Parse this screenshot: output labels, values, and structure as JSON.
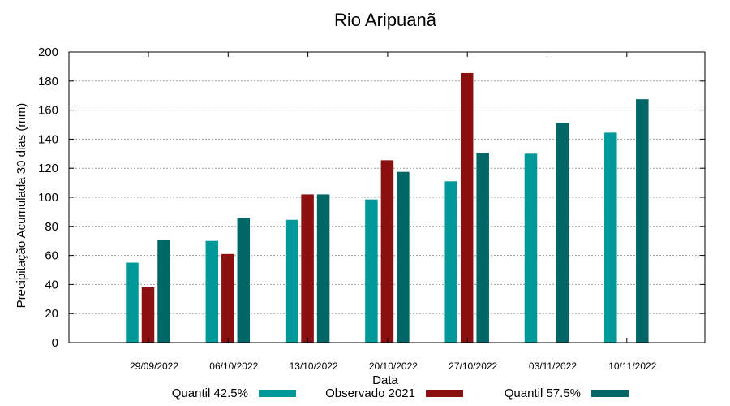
{
  "chart_data": {
    "type": "bar",
    "title": "Rio Aripuanã",
    "xlabel": "Data",
    "ylabel": "Precipitação Acumulada 30 dias (mm)",
    "ylim": [
      0,
      200
    ],
    "yticks": [
      0,
      20,
      40,
      60,
      80,
      100,
      120,
      140,
      160,
      180,
      200
    ],
    "grid": true,
    "legend_position": "bottom",
    "categories": [
      "29/09/2022",
      "06/10/2022",
      "13/10/2022",
      "20/10/2022",
      "27/10/2022",
      "03/11/2022",
      "10/11/2022"
    ],
    "series": [
      {
        "name": "Quantil 42.5%",
        "color": "#009999",
        "values": [
          55,
          70,
          84.5,
          98.5,
          111,
          130,
          144.5
        ]
      },
      {
        "name": "Observado 2021",
        "color": "#8b1010",
        "values": [
          38,
          61,
          102,
          125.5,
          185.5,
          null,
          null
        ]
      },
      {
        "name": "Quantil 57.5%",
        "color": "#006666",
        "values": [
          70.5,
          86,
          102,
          117.5,
          130.5,
          151,
          167.5
        ]
      }
    ]
  }
}
